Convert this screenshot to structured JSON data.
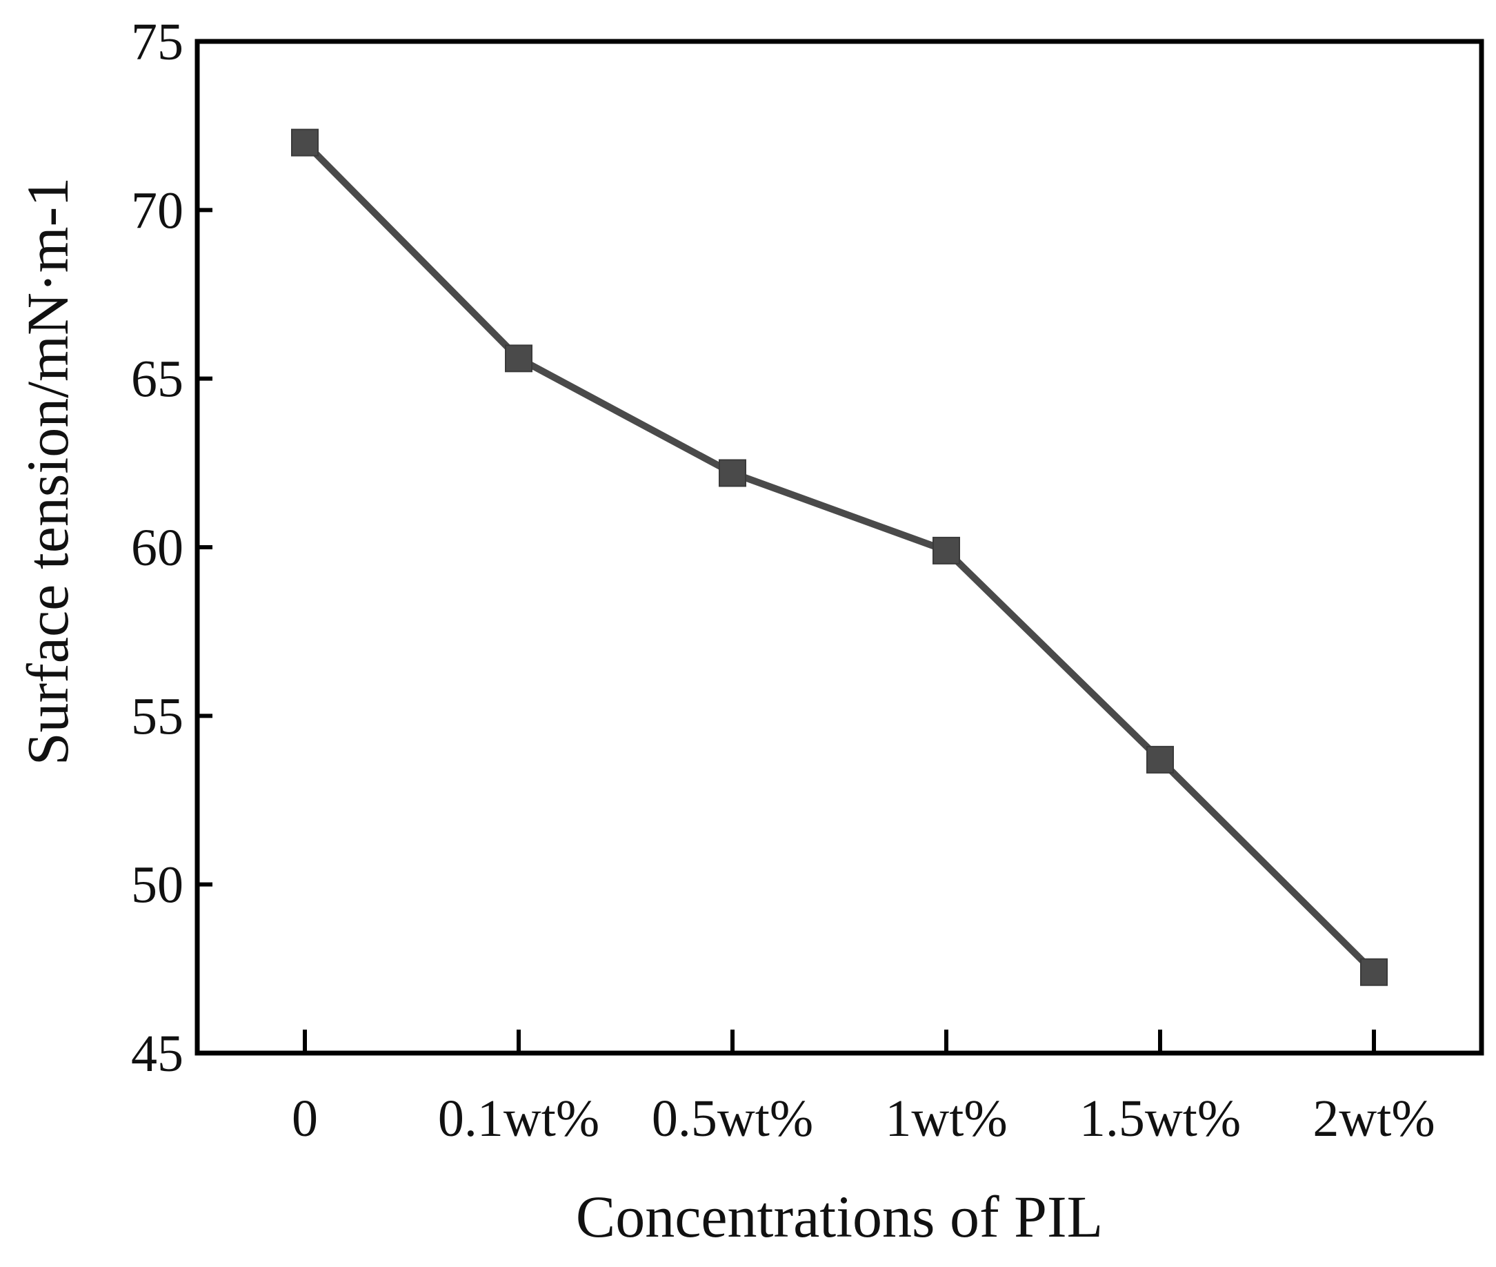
{
  "chart_data": {
    "type": "line",
    "title": "",
    "xlabel": "Concentrations of PIL",
    "ylabel": "Surface tension/mN·m-1",
    "categories": [
      "0",
      "0.1wt%",
      "0.5wt%",
      "1wt%",
      "1.5wt%",
      "2wt%"
    ],
    "series": [
      {
        "name": "Surface tension",
        "values": [
          72.0,
          65.6,
          62.2,
          59.9,
          53.7,
          47.4
        ]
      }
    ],
    "ylim": [
      45,
      75
    ],
    "yticks": [
      45,
      50,
      55,
      60,
      65,
      70,
      75
    ],
    "grid": false,
    "marker": "square",
    "line_color": "#4a4a4a"
  }
}
